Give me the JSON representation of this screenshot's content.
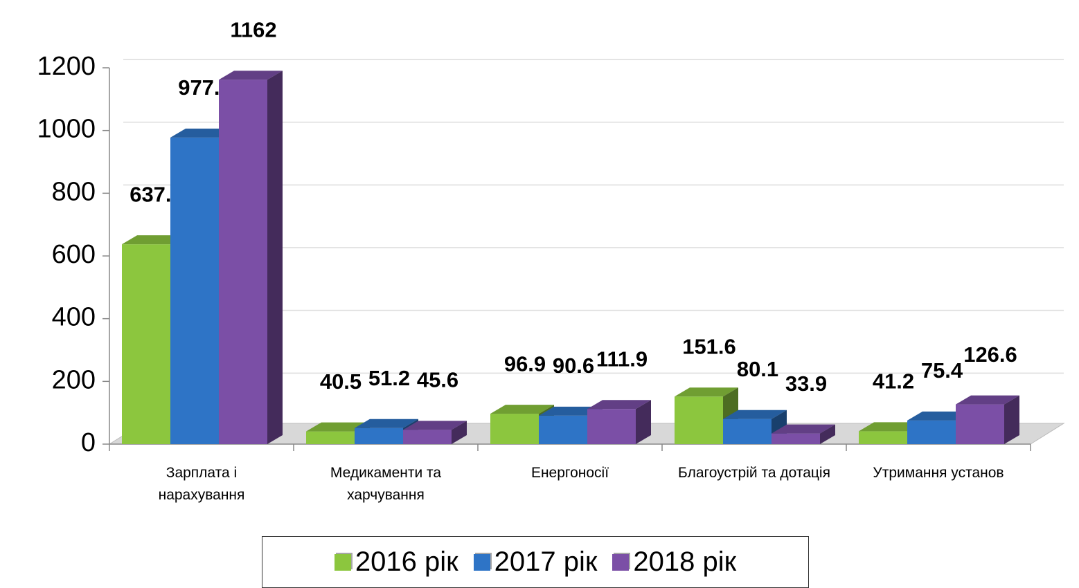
{
  "chart_data": {
    "type": "bar3d",
    "categories": [
      "Зарплата і нарахування",
      "Медикаменти та харчування",
      "Енергоносії",
      "Благоустрій та дотація",
      "Утримання установ"
    ],
    "series": [
      {
        "name": "2016 рік",
        "color": "#8cc63e",
        "values": [
          637.2,
          40.5,
          96.9,
          151.6,
          41.2
        ]
      },
      {
        "name": "2017 рік",
        "color": "#2e74c6",
        "values": [
          977.5,
          51.2,
          90.6,
          80.1,
          75.4
        ]
      },
      {
        "name": "2018 рік",
        "color": "#7b4fa6",
        "values": [
          1162,
          45.6,
          111.9,
          33.9,
          126.6
        ]
      }
    ],
    "ylim": [
      0,
      1200
    ],
    "yticks": [
      0,
      200,
      400,
      600,
      800,
      1000,
      1200
    ],
    "grid": true,
    "legend": "bottom"
  }
}
